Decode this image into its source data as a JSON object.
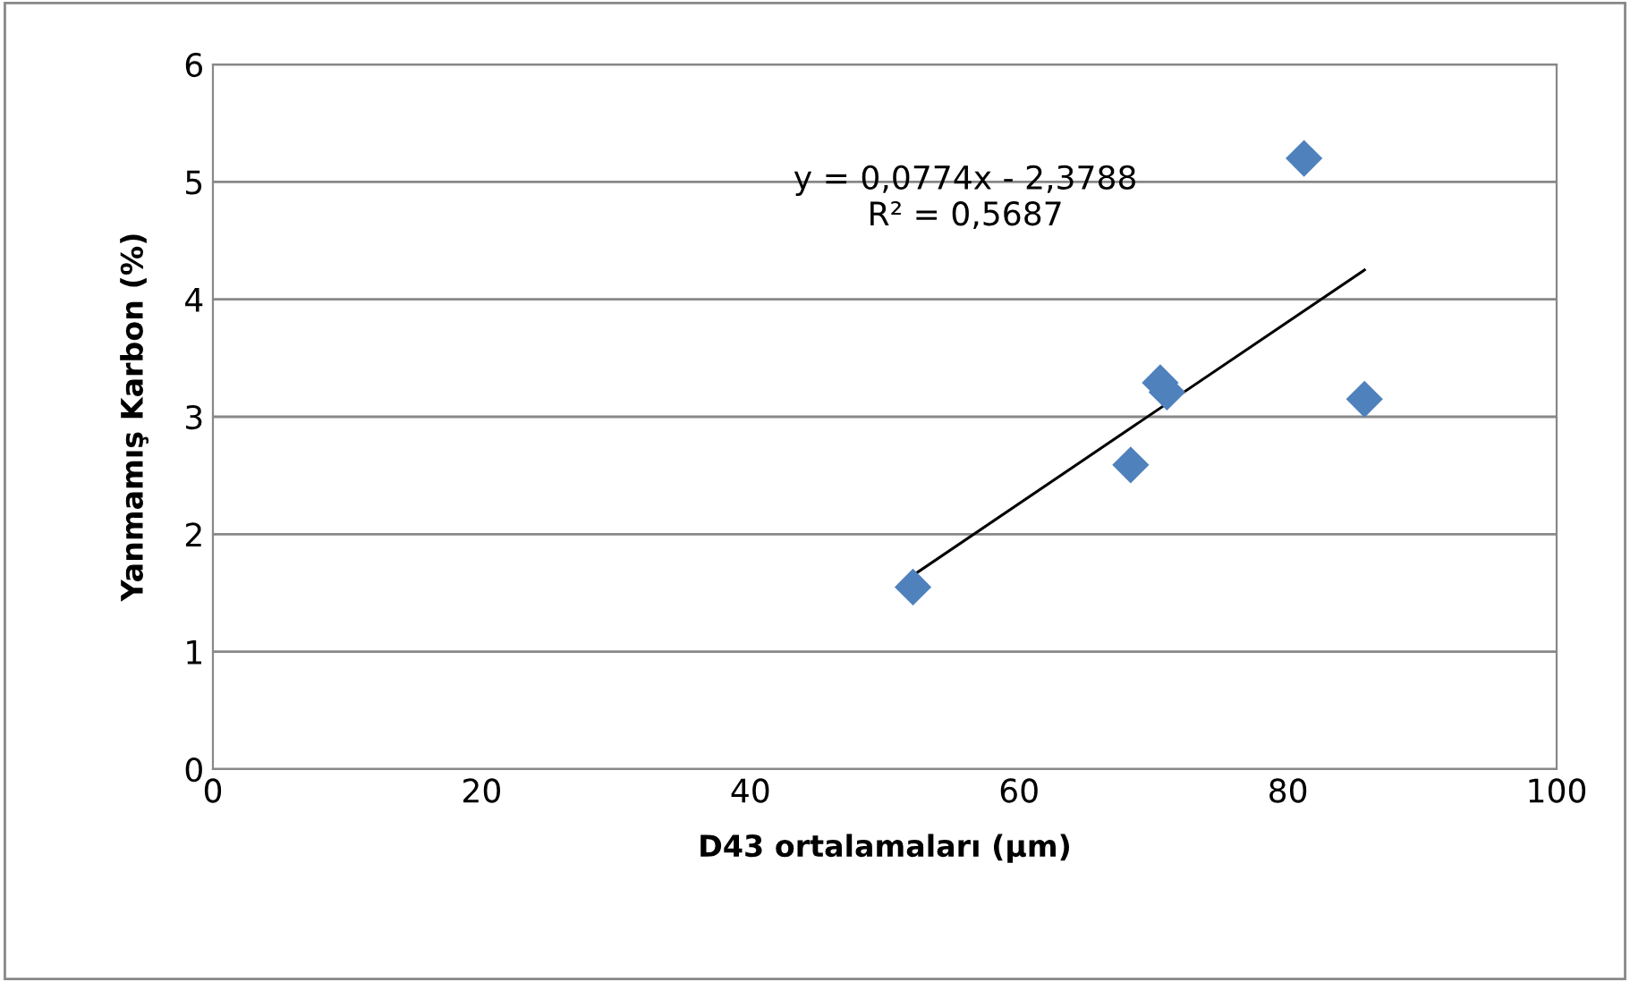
{
  "chart_data": {
    "type": "scatter",
    "xlabel": "D43 ortalamaları (µm)",
    "ylabel": "Yanmamış Karbon (%)",
    "series": [
      {
        "color": "#4f81bd",
        "marker": "diamond",
        "x": [
          52.1,
          68.3,
          70.5,
          71.0,
          81.2,
          85.7
        ],
        "values": [
          1.55,
          2.59,
          3.29,
          3.21,
          5.2,
          3.15
        ]
      },
      {
        "type": "line",
        "color": "#000000",
        "marker": "none",
        "x": [
          52.1,
          85.7
        ],
        "values": [
          1.65,
          4.25
        ]
      }
    ],
    "annotations": [
      "y = 0,0774x - 2,3788\nR² = 0,5687"
    ],
    "xlim": [
      0,
      100
    ],
    "xticks": [
      0,
      20,
      40,
      60,
      80,
      100
    ],
    "ylim": [
      0,
      6
    ],
    "yticks": [
      0,
      1,
      2,
      3,
      4,
      5,
      6
    ],
    "grid": "y",
    "legend": false
  }
}
